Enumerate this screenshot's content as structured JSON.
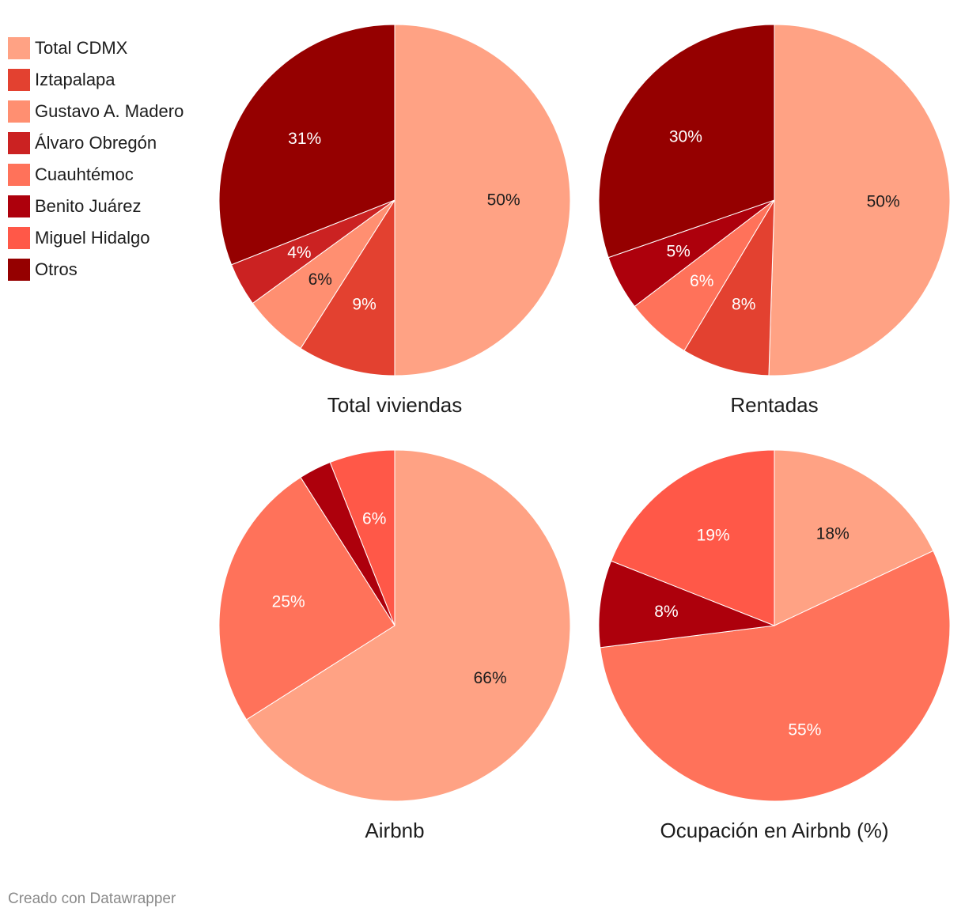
{
  "legend": {
    "items": [
      {
        "label": "Total CDMX",
        "color": "#ffa284"
      },
      {
        "label": "Iztapalapa",
        "color": "#e34130"
      },
      {
        "label": "Gustavo A. Madero",
        "color": "#ff8f71"
      },
      {
        "label": "Álvaro Obregón",
        "color": "#cb2222"
      },
      {
        "label": "Cuauhtémoc",
        "color": "#ff725a"
      },
      {
        "label": "Benito Juárez",
        "color": "#ad000c"
      },
      {
        "label": "Miguel Hidalgo",
        "color": "#ff5848"
      },
      {
        "label": "Otros",
        "color": "#950000"
      }
    ]
  },
  "chart_data": [
    {
      "type": "pie",
      "title": "Total viviendas",
      "slices": [
        {
          "category": "Total CDMX",
          "value": 50,
          "label": "50%",
          "color": "#ffa284"
        },
        {
          "category": "Iztapalapa",
          "value": 9,
          "label": "9%",
          "color": "#e34130"
        },
        {
          "category": "Gustavo A. Madero",
          "value": 6,
          "label": "6%",
          "color": "#ff8f71"
        },
        {
          "category": "Álvaro Obregón",
          "value": 4,
          "label": "4%",
          "color": "#cb2222"
        },
        {
          "category": "Otros",
          "value": 31,
          "label": "31%",
          "color": "#950000"
        }
      ]
    },
    {
      "type": "pie",
      "title": "Rentadas",
      "slices": [
        {
          "category": "Total CDMX",
          "value": 50,
          "label": "50%",
          "color": "#ffa284"
        },
        {
          "category": "Iztapalapa",
          "value": 8,
          "label": "8%",
          "color": "#e34130"
        },
        {
          "category": "Cuauhtémoc",
          "value": 6,
          "label": "6%",
          "color": "#ff725a"
        },
        {
          "category": "Benito Juárez",
          "value": 5,
          "label": "5%",
          "color": "#ad000c"
        },
        {
          "category": "Otros",
          "value": 30,
          "label": "30%",
          "color": "#950000"
        }
      ]
    },
    {
      "type": "pie",
      "title": "Airbnb",
      "slices": [
        {
          "category": "Total CDMX",
          "value": 66,
          "label": "66%",
          "color": "#ffa284"
        },
        {
          "category": "Cuauhtémoc",
          "value": 25,
          "label": "25%",
          "color": "#ff725a"
        },
        {
          "category": "Benito Juárez",
          "value": 3,
          "label": "",
          "color": "#ad000c"
        },
        {
          "category": "Miguel Hidalgo",
          "value": 6,
          "label": "6%",
          "color": "#ff5848"
        }
      ]
    },
    {
      "type": "pie",
      "title": "Ocupación en Airbnb (%)",
      "slices": [
        {
          "category": "Total CDMX",
          "value": 18,
          "label": "18%",
          "color": "#ffa284"
        },
        {
          "category": "Cuauhtémoc",
          "value": 55,
          "label": "55%",
          "color": "#ff725a"
        },
        {
          "category": "Benito Juárez",
          "value": 8,
          "label": "8%",
          "color": "#ad000c"
        },
        {
          "category": "Miguel Hidalgo",
          "value": 19,
          "label": "19%",
          "color": "#ff5848"
        }
      ]
    }
  ],
  "footer": {
    "credit": "Creado con Datawrapper"
  }
}
